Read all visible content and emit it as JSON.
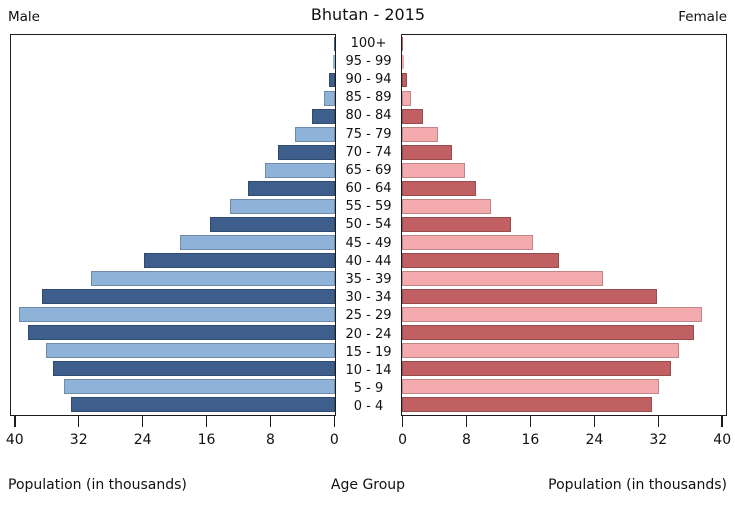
{
  "title": "Bhutan - 2015",
  "headers": {
    "male": "Male",
    "female": "Female"
  },
  "colors": {
    "male_dark": "#3E5E8C",
    "male_light": "#8FB2D8",
    "female_dark": "#C06062",
    "female_light": "#F3ABAD",
    "axis": "#1c1c1c"
  },
  "chart_data": {
    "type": "bar",
    "subtype": "population-pyramid",
    "title": "Bhutan - 2015",
    "xlabel": "Population (in thousands)",
    "ylabel": "Age Group",
    "xlim": [
      0,
      40.4
    ],
    "x_ticks": [
      0,
      8,
      16,
      24,
      32,
      40
    ],
    "grid": false,
    "legend_position": "top-corners",
    "bar_color_alternation": "dark on even rows from top, light on odd rows",
    "categories": [
      "100+",
      "95 - 99",
      "90 - 94",
      "85 - 89",
      "80 - 84",
      "75 - 79",
      "70 - 74",
      "65 - 69",
      "60 - 64",
      "55 - 59",
      "50 - 54",
      "45 - 49",
      "40 - 44",
      "35 - 39",
      "30 - 34",
      "25 - 29",
      "20 - 24",
      "15 - 19",
      "10 - 14",
      "5 - 9",
      "0 - 4"
    ],
    "series": [
      {
        "name": "Male",
        "values": [
          0.1,
          0.3,
          0.7,
          1.4,
          2.9,
          5.0,
          7.1,
          8.8,
          10.9,
          13.1,
          15.7,
          19.4,
          23.9,
          30.5,
          36.7,
          39.5,
          38.4,
          36.2,
          35.3,
          33.9,
          33.1
        ]
      },
      {
        "name": "Female",
        "values": [
          0.1,
          0.2,
          0.6,
          1.1,
          2.6,
          4.5,
          6.3,
          7.9,
          9.3,
          11.1,
          13.7,
          16.4,
          19.7,
          25.2,
          31.9,
          37.6,
          36.6,
          34.7,
          33.7,
          32.2,
          31.3
        ]
      }
    ]
  }
}
